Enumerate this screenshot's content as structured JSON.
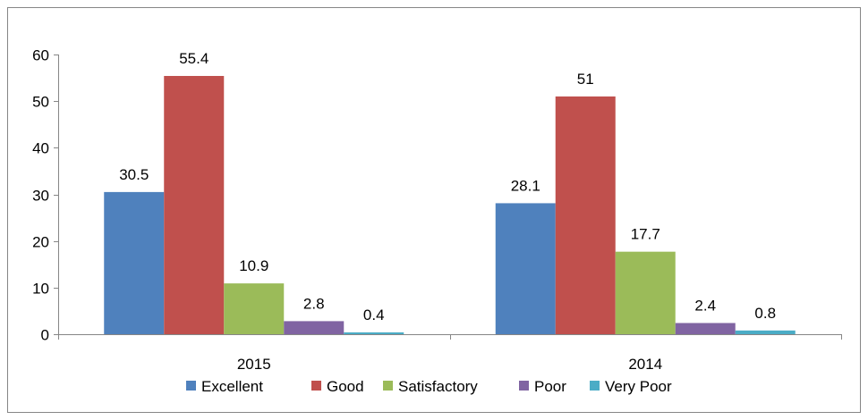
{
  "chart_data": {
    "type": "bar",
    "title": "",
    "xlabel": "",
    "ylabel": "",
    "categories": [
      "2015",
      "2014"
    ],
    "ylim": [
      0,
      60
    ],
    "yticks": [
      0,
      10,
      20,
      30,
      40,
      50,
      60
    ],
    "grid": false,
    "legend_position": "bottom",
    "series": [
      {
        "name": "Excellent",
        "color": "#4F81BD",
        "values": [
          30.5,
          28.1
        ],
        "labels": [
          "30.5",
          "28.1"
        ]
      },
      {
        "name": "Good",
        "color": "#C0504D",
        "values": [
          55.4,
          51
        ],
        "labels": [
          "55.4",
          "51"
        ]
      },
      {
        "name": "Satisfactory",
        "color": "#9BBB59",
        "values": [
          10.9,
          17.7
        ],
        "labels": [
          "10.9",
          "17.7"
        ]
      },
      {
        "name": "Poor",
        "color": "#8064A2",
        "values": [
          2.8,
          2.4
        ],
        "labels": [
          "2.8",
          "2.4"
        ]
      },
      {
        "name": "Very Poor",
        "color": "#4BACC6",
        "values": [
          0.4,
          0.8
        ],
        "labels": [
          "0.4",
          "0.8"
        ]
      }
    ]
  }
}
